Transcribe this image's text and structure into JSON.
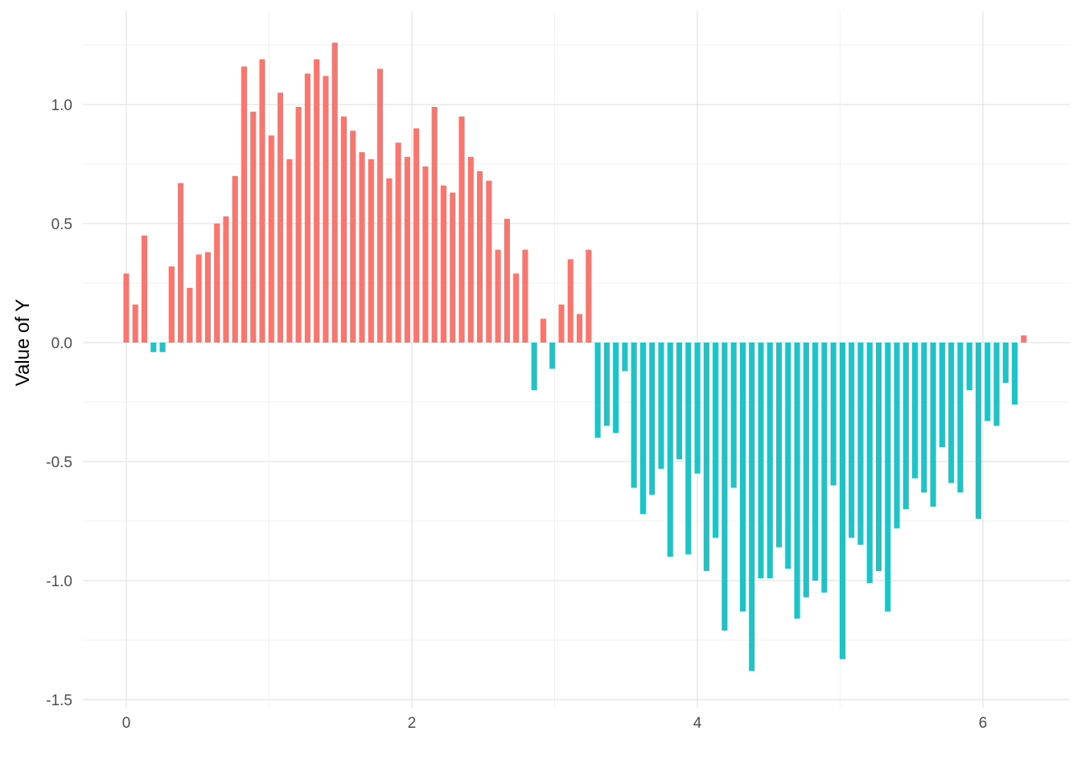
{
  "chart_data": {
    "type": "bar",
    "xlabel": "",
    "ylabel": "Value of Y",
    "xlim": [
      -0.3,
      6.5
    ],
    "ylim": [
      -1.5,
      1.3
    ],
    "x_ticks": [
      0,
      2,
      4,
      6
    ],
    "x_tick_labels": [
      "0",
      "2",
      "4",
      "6"
    ],
    "y_ticks": [
      1.0,
      0.5,
      0.0,
      -0.5,
      -1.0,
      -1.5
    ],
    "y_tick_labels": [
      "1.0",
      "0.5",
      "0.0",
      "-0.5",
      "-1.0",
      "-1.5"
    ],
    "grid": true,
    "legend": "none",
    "bar_width": 0.04,
    "colors": {
      "positive": "#F8766D",
      "negative": "#1EC3C8"
    },
    "x": [
      0.0,
      0.0635,
      0.127,
      0.1905,
      0.254,
      0.3175,
      0.381,
      0.4445,
      0.508,
      0.5715,
      0.635,
      0.6985,
      0.762,
      0.8255,
      0.889,
      0.9525,
      1.016,
      1.0795,
      1.143,
      1.2065,
      1.27,
      1.3335,
      1.397,
      1.4605,
      1.524,
      1.5875,
      1.651,
      1.7145,
      1.778,
      1.8415,
      1.905,
      1.9685,
      2.032,
      2.0955,
      2.159,
      2.2225,
      2.286,
      2.3495,
      2.413,
      2.4765,
      2.54,
      2.6035,
      2.667,
      2.7305,
      2.794,
      2.8575,
      2.921,
      2.9845,
      3.048,
      3.1115,
      3.175,
      3.2385,
      3.302,
      3.3655,
      3.429,
      3.4925,
      3.556,
      3.6195,
      3.683,
      3.7465,
      3.81,
      3.8735,
      3.937,
      4.0005,
      4.064,
      4.1275,
      4.191,
      4.2545,
      4.318,
      4.3815,
      4.445,
      4.5085,
      4.572,
      4.6355,
      4.699,
      4.7625,
      4.826,
      4.8895,
      4.953,
      5.0165,
      5.08,
      5.1435,
      5.207,
      5.2705,
      5.334,
      5.3975,
      5.461,
      5.5245,
      5.588,
      5.6515,
      5.715,
      5.7785,
      5.842,
      5.9055,
      5.969,
      6.0325,
      6.096,
      6.1595,
      6.223,
      6.2865
    ],
    "values": [
      0.29,
      0.16,
      0.45,
      -0.04,
      -0.04,
      0.32,
      0.67,
      0.23,
      0.37,
      0.38,
      0.5,
      0.53,
      0.7,
      1.16,
      0.97,
      1.19,
      0.87,
      1.05,
      0.77,
      0.99,
      1.13,
      1.19,
      1.12,
      1.26,
      0.95,
      0.89,
      0.8,
      0.77,
      1.15,
      0.69,
      0.84,
      0.78,
      0.9,
      0.74,
      0.99,
      0.66,
      0.63,
      0.95,
      0.78,
      0.72,
      0.68,
      0.39,
      0.52,
      0.29,
      0.39,
      -0.2,
      0.1,
      -0.11,
      0.16,
      0.35,
      0.12,
      0.39,
      -0.4,
      -0.35,
      -0.38,
      -0.12,
      -0.61,
      -0.72,
      -0.64,
      -0.53,
      -0.9,
      -0.49,
      -0.89,
      -0.55,
      -0.96,
      -0.82,
      -1.21,
      -0.61,
      -1.13,
      -1.38,
      -0.99,
      -0.99,
      -0.86,
      -0.95,
      -1.16,
      -1.07,
      -1.0,
      -1.05,
      -0.6,
      -1.33,
      -0.82,
      -0.85,
      -1.01,
      -0.96,
      -1.13,
      -0.78,
      -0.7,
      -0.57,
      -0.63,
      -0.69,
      -0.44,
      -0.59,
      -0.63,
      -0.2,
      -0.74,
      -0.33,
      -0.35,
      -0.17,
      -0.26,
      0.03
    ]
  }
}
